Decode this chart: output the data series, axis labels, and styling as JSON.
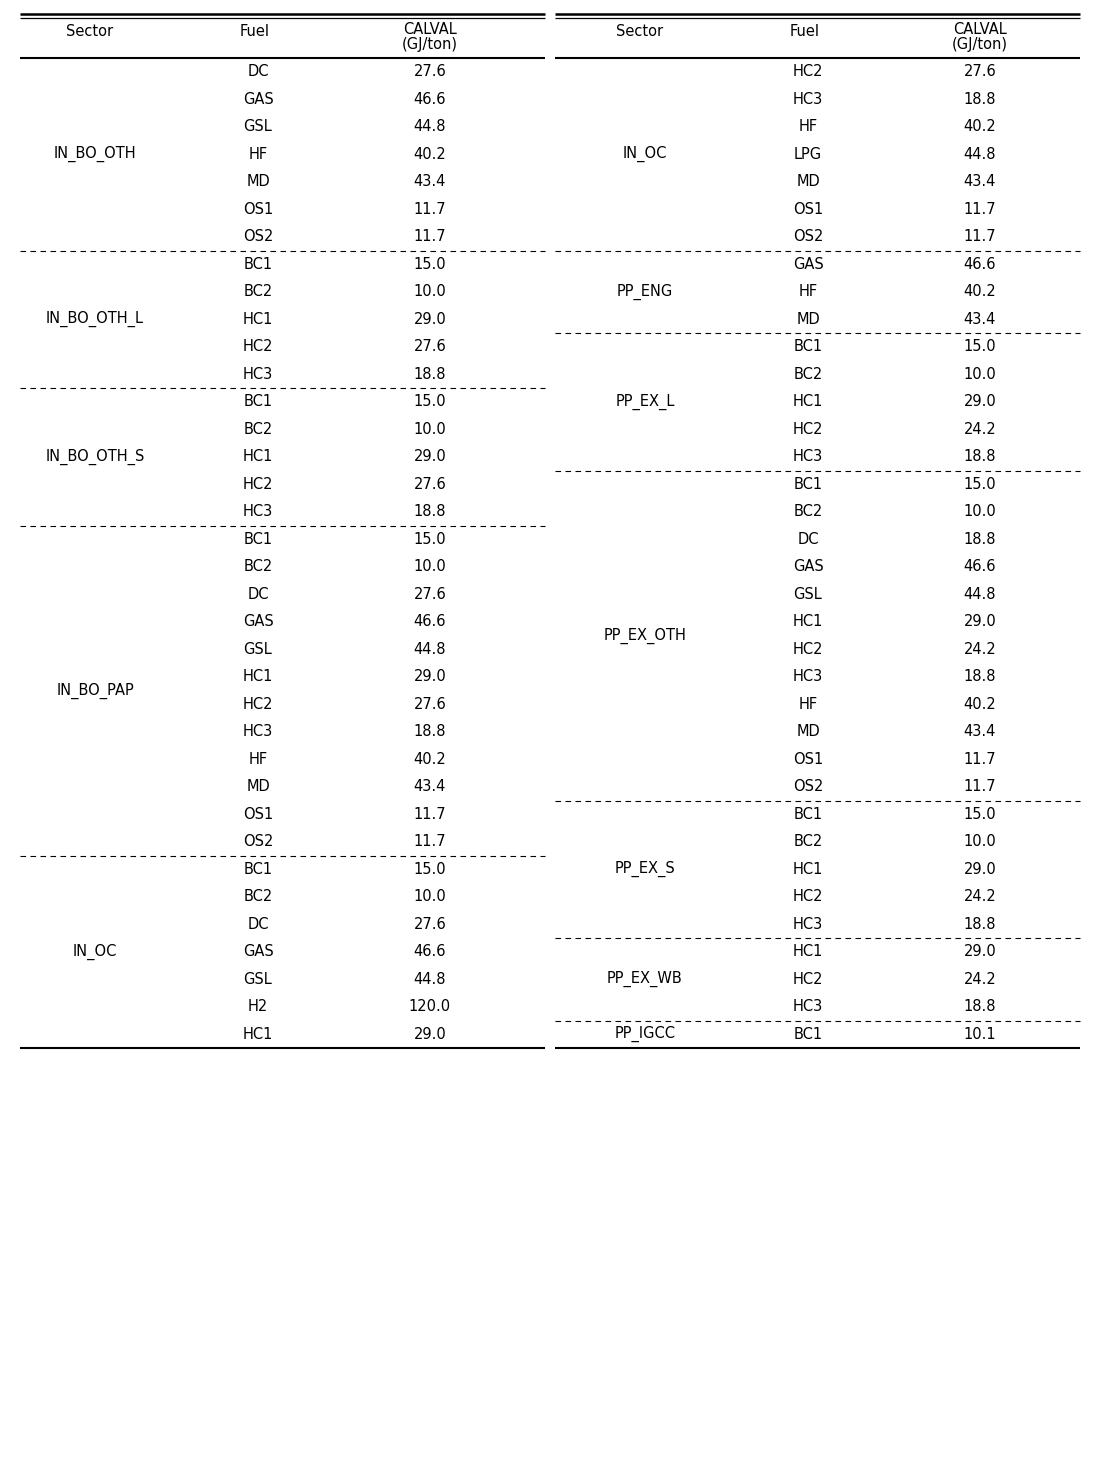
{
  "left_table": [
    [
      "IN_BO_OTH",
      [
        "DC",
        "GAS",
        "GSL",
        "HF",
        "MD",
        "OS1",
        "OS2"
      ],
      [
        "27.6",
        "46.6",
        "44.8",
        "40.2",
        "43.4",
        "11.7",
        "11.7"
      ]
    ],
    [
      "IN_BO_OTH_L",
      [
        "BC1",
        "BC2",
        "HC1",
        "HC2",
        "HC3"
      ],
      [
        "15.0",
        "10.0",
        "29.0",
        "27.6",
        "18.8"
      ]
    ],
    [
      "IN_BO_OTH_S",
      [
        "BC1",
        "BC2",
        "HC1",
        "HC2",
        "HC3"
      ],
      [
        "15.0",
        "10.0",
        "29.0",
        "27.6",
        "18.8"
      ]
    ],
    [
      "IN_BO_PAP",
      [
        "BC1",
        "BC2",
        "DC",
        "GAS",
        "GSL",
        "HC1",
        "HC2",
        "HC3",
        "HF",
        "MD",
        "OS1",
        "OS2"
      ],
      [
        "15.0",
        "10.0",
        "27.6",
        "46.6",
        "44.8",
        "29.0",
        "27.6",
        "18.8",
        "40.2",
        "43.4",
        "11.7",
        "11.7"
      ]
    ],
    [
      "IN_OC",
      [
        "BC1",
        "BC2",
        "DC",
        "GAS",
        "GSL",
        "H2",
        "HC1"
      ],
      [
        "15.0",
        "10.0",
        "27.6",
        "46.6",
        "44.8",
        "120.0",
        "29.0"
      ]
    ]
  ],
  "right_table": [
    [
      "IN_OC",
      [
        "HC2",
        "HC3",
        "HF",
        "LPG",
        "MD",
        "OS1",
        "OS2"
      ],
      [
        "27.6",
        "18.8",
        "40.2",
        "44.8",
        "43.4",
        "11.7",
        "11.7"
      ]
    ],
    [
      "PP_ENG",
      [
        "GAS",
        "HF",
        "MD"
      ],
      [
        "46.6",
        "40.2",
        "43.4"
      ]
    ],
    [
      "PP_EX_L",
      [
        "BC1",
        "BC2",
        "HC1",
        "HC2",
        "HC3"
      ],
      [
        "15.0",
        "10.0",
        "29.0",
        "24.2",
        "18.8"
      ]
    ],
    [
      "PP_EX_OTH",
      [
        "BC1",
        "BC2",
        "DC",
        "GAS",
        "GSL",
        "HC1",
        "HC2",
        "HC3",
        "HF",
        "MD",
        "OS1",
        "OS2"
      ],
      [
        "15.0",
        "10.0",
        "18.8",
        "46.6",
        "44.8",
        "29.0",
        "24.2",
        "18.8",
        "40.2",
        "43.4",
        "11.7",
        "11.7"
      ]
    ],
    [
      "PP_EX_S",
      [
        "BC1",
        "BC2",
        "HC1",
        "HC2",
        "HC3"
      ],
      [
        "15.0",
        "10.0",
        "29.0",
        "24.2",
        "18.8"
      ]
    ],
    [
      "PP_EX_WB",
      [
        "HC1",
        "HC2",
        "HC3"
      ],
      [
        "29.0",
        "24.2",
        "18.8"
      ]
    ],
    [
      "PP_IGCC",
      [
        "BC1"
      ],
      [
        "10.1"
      ]
    ]
  ],
  "bg_color": "#ffffff",
  "text_color": "#000000",
  "header_fontsize": 10.5,
  "cell_fontsize": 10.5
}
